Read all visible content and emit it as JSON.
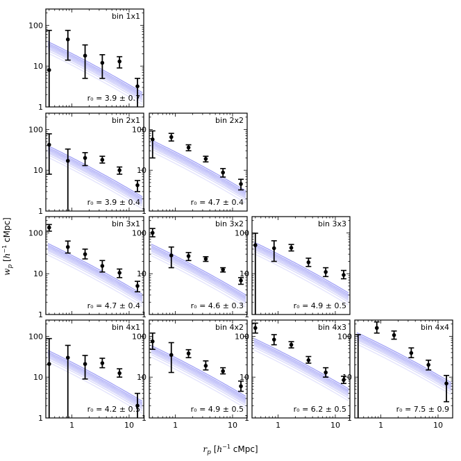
{
  "chart_data": {
    "type": "scatter",
    "layout": "lower-triangular grid of log-log panels",
    "xlabel": "r_p [h^-1 cMpc]",
    "ylabel": "w_p [h^-1 cMpc]",
    "xscale": "log",
    "yscale": "log",
    "xlim": [
      0.35,
      18
    ],
    "ylim": [
      1,
      250
    ],
    "x_ticks": [
      1,
      10
    ],
    "x_tick_labels": [
      "1",
      "10"
    ],
    "y_ticks": [
      1,
      10,
      100
    ],
    "y_tick_labels": [
      "1",
      "10",
      "100"
    ],
    "model_line_color": "#6b6bf0",
    "point_color": "#000000",
    "panels": [
      {
        "label": "bin 1x1",
        "row": 1,
        "col": 1,
        "r0_text": "r_0 = 3.9 ± 0.7",
        "r0": 3.9,
        "r0_err": 0.7,
        "x": [
          0.4,
          0.85,
          1.7,
          3.4,
          6.8,
          14
        ],
        "y": [
          8,
          45,
          18,
          12,
          13,
          3.2
        ],
        "y_low": [
          1,
          14,
          5,
          5,
          9,
          1
        ],
        "y_high": [
          75,
          75,
          33,
          19,
          17,
          5
        ]
      },
      {
        "label": "bin 2x1",
        "row": 2,
        "col": 1,
        "r0_text": "r_0 = 3.9 ± 0.4",
        "r0": 3.9,
        "r0_err": 0.4,
        "x": [
          0.4,
          0.85,
          1.7,
          3.4,
          6.8,
          14
        ],
        "y": [
          42,
          17,
          20,
          18,
          10,
          4.3
        ],
        "y_low": [
          8,
          1,
          13,
          15,
          8,
          3
        ],
        "y_high": [
          78,
          33,
          27,
          22,
          12,
          5.6
        ]
      },
      {
        "label": "bin 2x2",
        "row": 2,
        "col": 2,
        "r0_text": "r_0 = 4.7 ± 0.4",
        "r0": 4.7,
        "r0_err": 0.4,
        "x": [
          0.4,
          0.85,
          1.7,
          3.4,
          6.8,
          14
        ],
        "y": [
          57,
          65,
          36,
          19,
          8.8,
          4.6
        ],
        "y_low": [
          20,
          52,
          30,
          16,
          6.8,
          3.3
        ],
        "y_high": [
          92,
          80,
          42,
          22,
          11,
          6
        ]
      },
      {
        "label": "bin 3x1",
        "row": 3,
        "col": 1,
        "r0_text": "r_0 = 4.7 ± 0.4",
        "r0": 4.7,
        "r0_err": 0.4,
        "x": [
          0.4,
          0.85,
          1.7,
          3.4,
          6.8,
          14
        ],
        "y": [
          135,
          45,
          30,
          15.5,
          10.5,
          5
        ],
        "y_low": [
          110,
          32,
          23,
          11,
          8,
          3.6
        ],
        "y_high": [
          160,
          63,
          40,
          21,
          13,
          6.5
        ]
      },
      {
        "label": "bin 3x2",
        "row": 3,
        "col": 2,
        "r0_text": "r_0 = 4.6 ± 0.3",
        "r0": 4.6,
        "r0_err": 0.3,
        "x": [
          0.4,
          0.85,
          1.7,
          3.4,
          6.8,
          14
        ],
        "y": [
          100,
          28,
          27,
          23,
          12.5,
          6.8
        ],
        "y_low": [
          80,
          14,
          21,
          20,
          11,
          5.5
        ],
        "y_high": [
          128,
          45,
          33,
          26,
          14,
          8
        ]
      },
      {
        "label": "bin 3x3",
        "row": 3,
        "col": 3,
        "r0_text": "r_0 = 4.9 ± 0.5",
        "r0": 4.9,
        "r0_err": 0.5,
        "x": [
          0.4,
          0.85,
          1.7,
          3.4,
          6.8,
          14
        ],
        "y": [
          50,
          42,
          43,
          19,
          11,
          9.3
        ],
        "y_low": [
          1,
          20,
          36,
          15,
          8.5,
          7.5
        ],
        "y_high": [
          98,
          64,
          52,
          24,
          14,
          12
        ]
      },
      {
        "label": "bin 4x1",
        "row": 4,
        "col": 1,
        "r0_text": "r_0 = 4.2 ± 0.5",
        "r0": 4.2,
        "r0_err": 0.5,
        "x": [
          0.4,
          0.85,
          1.7,
          3.4,
          6.8,
          14
        ],
        "y": [
          21,
          30,
          21,
          22,
          12.5,
          2
        ],
        "y_low": [
          1,
          1,
          9,
          17,
          10,
          1
        ],
        "y_high": [
          88,
          60,
          34,
          29,
          16,
          4
        ]
      },
      {
        "label": "bin 4x2",
        "row": 4,
        "col": 2,
        "r0_text": "r_0 = 4.9 ± 0.5",
        "r0": 4.9,
        "r0_err": 0.5,
        "x": [
          0.4,
          0.85,
          1.7,
          3.4,
          6.8,
          14
        ],
        "y": [
          75,
          35,
          38,
          19,
          14,
          6
        ],
        "y_low": [
          48,
          13,
          30,
          15,
          12,
          4.5
        ],
        "y_high": [
          120,
          70,
          47,
          25,
          17,
          8
        ]
      },
      {
        "label": "bin 4x3",
        "row": 4,
        "col": 3,
        "r0_text": "r_0 = 6.2 ± 0.5",
        "r0": 6.2,
        "r0_err": 0.5,
        "x": [
          0.4,
          0.85,
          1.7,
          3.4,
          6.8,
          14
        ],
        "y": [
          160,
          83,
          62,
          26,
          13,
          8.5
        ],
        "y_low": [
          120,
          62,
          52,
          22,
          10,
          7
        ],
        "y_high": [
          210,
          110,
          74,
          32,
          17,
          10.5
        ]
      },
      {
        "label": "bin 4x4",
        "row": 4,
        "col": 4,
        "r0_text": "r_0 = 7.5 ± 0.9",
        "r0": 7.5,
        "r0_err": 0.9,
        "x": [
          0.4,
          0.85,
          1.7,
          3.4,
          6.8,
          14
        ],
        "y": [
          null,
          160,
          107,
          39,
          20,
          7
        ],
        "y_low": [
          1,
          120,
          85,
          30,
          15,
          2.5
        ],
        "y_high": [
          110,
          225,
          135,
          52,
          26,
          11
        ]
      }
    ]
  }
}
